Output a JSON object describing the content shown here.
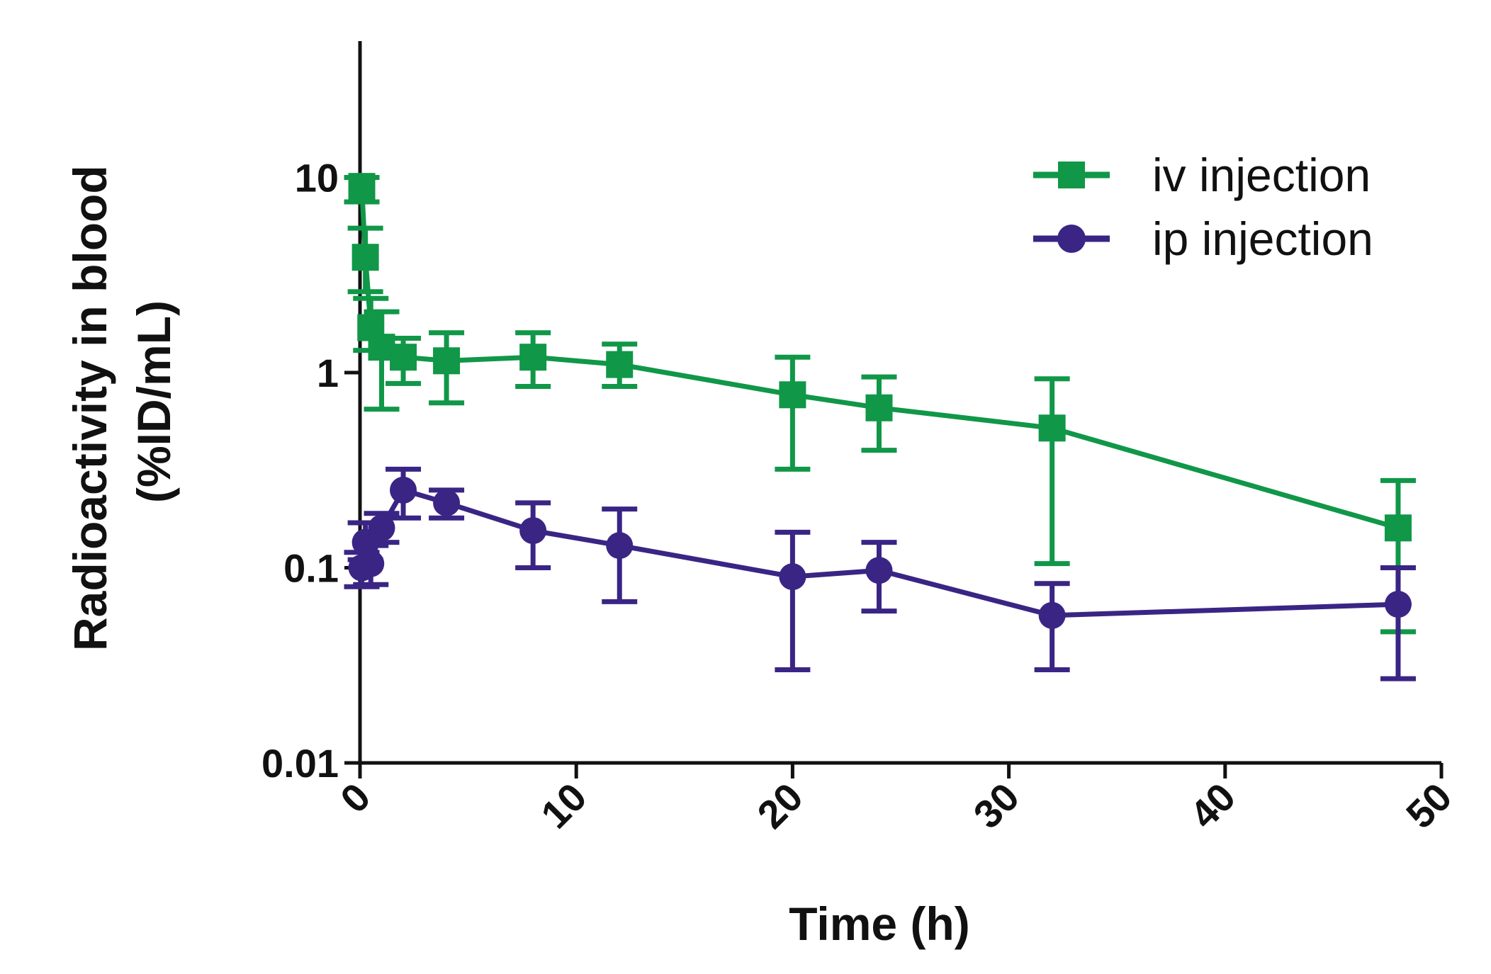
{
  "chart_data": {
    "type": "line",
    "title": "",
    "xlabel": "Time (h)",
    "ylabel_lines": [
      "Radioactivity in blood",
      "(%ID/mL)"
    ],
    "xlim": [
      0,
      50
    ],
    "ylim": [
      0.01,
      50
    ],
    "yscale": "log",
    "x_ticks": [
      0,
      10,
      20,
      30,
      40,
      50
    ],
    "x_tick_labels": [
      "0",
      "10",
      "20",
      "30",
      "40",
      "50"
    ],
    "y_ticks": [
      0.01,
      0.1,
      1,
      10
    ],
    "y_tick_labels": [
      "0.01",
      "0.1",
      "1",
      "10"
    ],
    "grid": false,
    "legend_position": "top-right",
    "series": [
      {
        "name": "iv injection",
        "color": "#109748",
        "marker": "square",
        "points": [
          {
            "x": 0.083,
            "y": 9.0,
            "lo": 7.5,
            "hi": 10.0
          },
          {
            "x": 0.25,
            "y": 3.9,
            "lo": 2.6,
            "hi": 5.5
          },
          {
            "x": 0.5,
            "y": 1.7,
            "lo": 1.3,
            "hi": 2.4
          },
          {
            "x": 1,
            "y": 1.35,
            "lo": 0.65,
            "hi": 2.05
          },
          {
            "x": 2,
            "y": 1.2,
            "lo": 0.88,
            "hi": 1.5
          },
          {
            "x": 4,
            "y": 1.15,
            "lo": 0.7,
            "hi": 1.6
          },
          {
            "x": 8,
            "y": 1.2,
            "lo": 0.85,
            "hi": 1.6
          },
          {
            "x": 12,
            "y": 1.1,
            "lo": 0.85,
            "hi": 1.4
          },
          {
            "x": 20,
            "y": 0.77,
            "lo": 0.32,
            "hi": 1.2
          },
          {
            "x": 24,
            "y": 0.66,
            "lo": 0.4,
            "hi": 0.95
          },
          {
            "x": 32,
            "y": 0.52,
            "lo": 0.105,
            "hi": 0.93
          },
          {
            "x": 48,
            "y": 0.16,
            "lo": 0.047,
            "hi": 0.28
          }
        ]
      },
      {
        "name": "ip injection",
        "color": "#3a2585",
        "marker": "circle",
        "points": [
          {
            "x": 0.083,
            "y": 0.1,
            "lo": 0.08,
            "hi": 0.12
          },
          {
            "x": 0.25,
            "y": 0.135,
            "lo": 0.11,
            "hi": 0.17
          },
          {
            "x": 0.5,
            "y": 0.105,
            "lo": 0.082,
            "hi": 0.13
          },
          {
            "x": 1,
            "y": 0.16,
            "lo": 0.135,
            "hi": 0.19
          },
          {
            "x": 2,
            "y": 0.25,
            "lo": 0.18,
            "hi": 0.32
          },
          {
            "x": 4,
            "y": 0.215,
            "lo": 0.18,
            "hi": 0.25
          },
          {
            "x": 8,
            "y": 0.155,
            "lo": 0.1,
            "hi": 0.215
          },
          {
            "x": 12,
            "y": 0.13,
            "lo": 0.067,
            "hi": 0.2
          },
          {
            "x": 20,
            "y": 0.09,
            "lo": 0.03,
            "hi": 0.152
          },
          {
            "x": 24,
            "y": 0.097,
            "lo": 0.06,
            "hi": 0.135
          },
          {
            "x": 32,
            "y": 0.057,
            "lo": 0.03,
            "hi": 0.083
          },
          {
            "x": 48,
            "y": 0.065,
            "lo": 0.027,
            "hi": 0.1
          }
        ]
      }
    ]
  }
}
